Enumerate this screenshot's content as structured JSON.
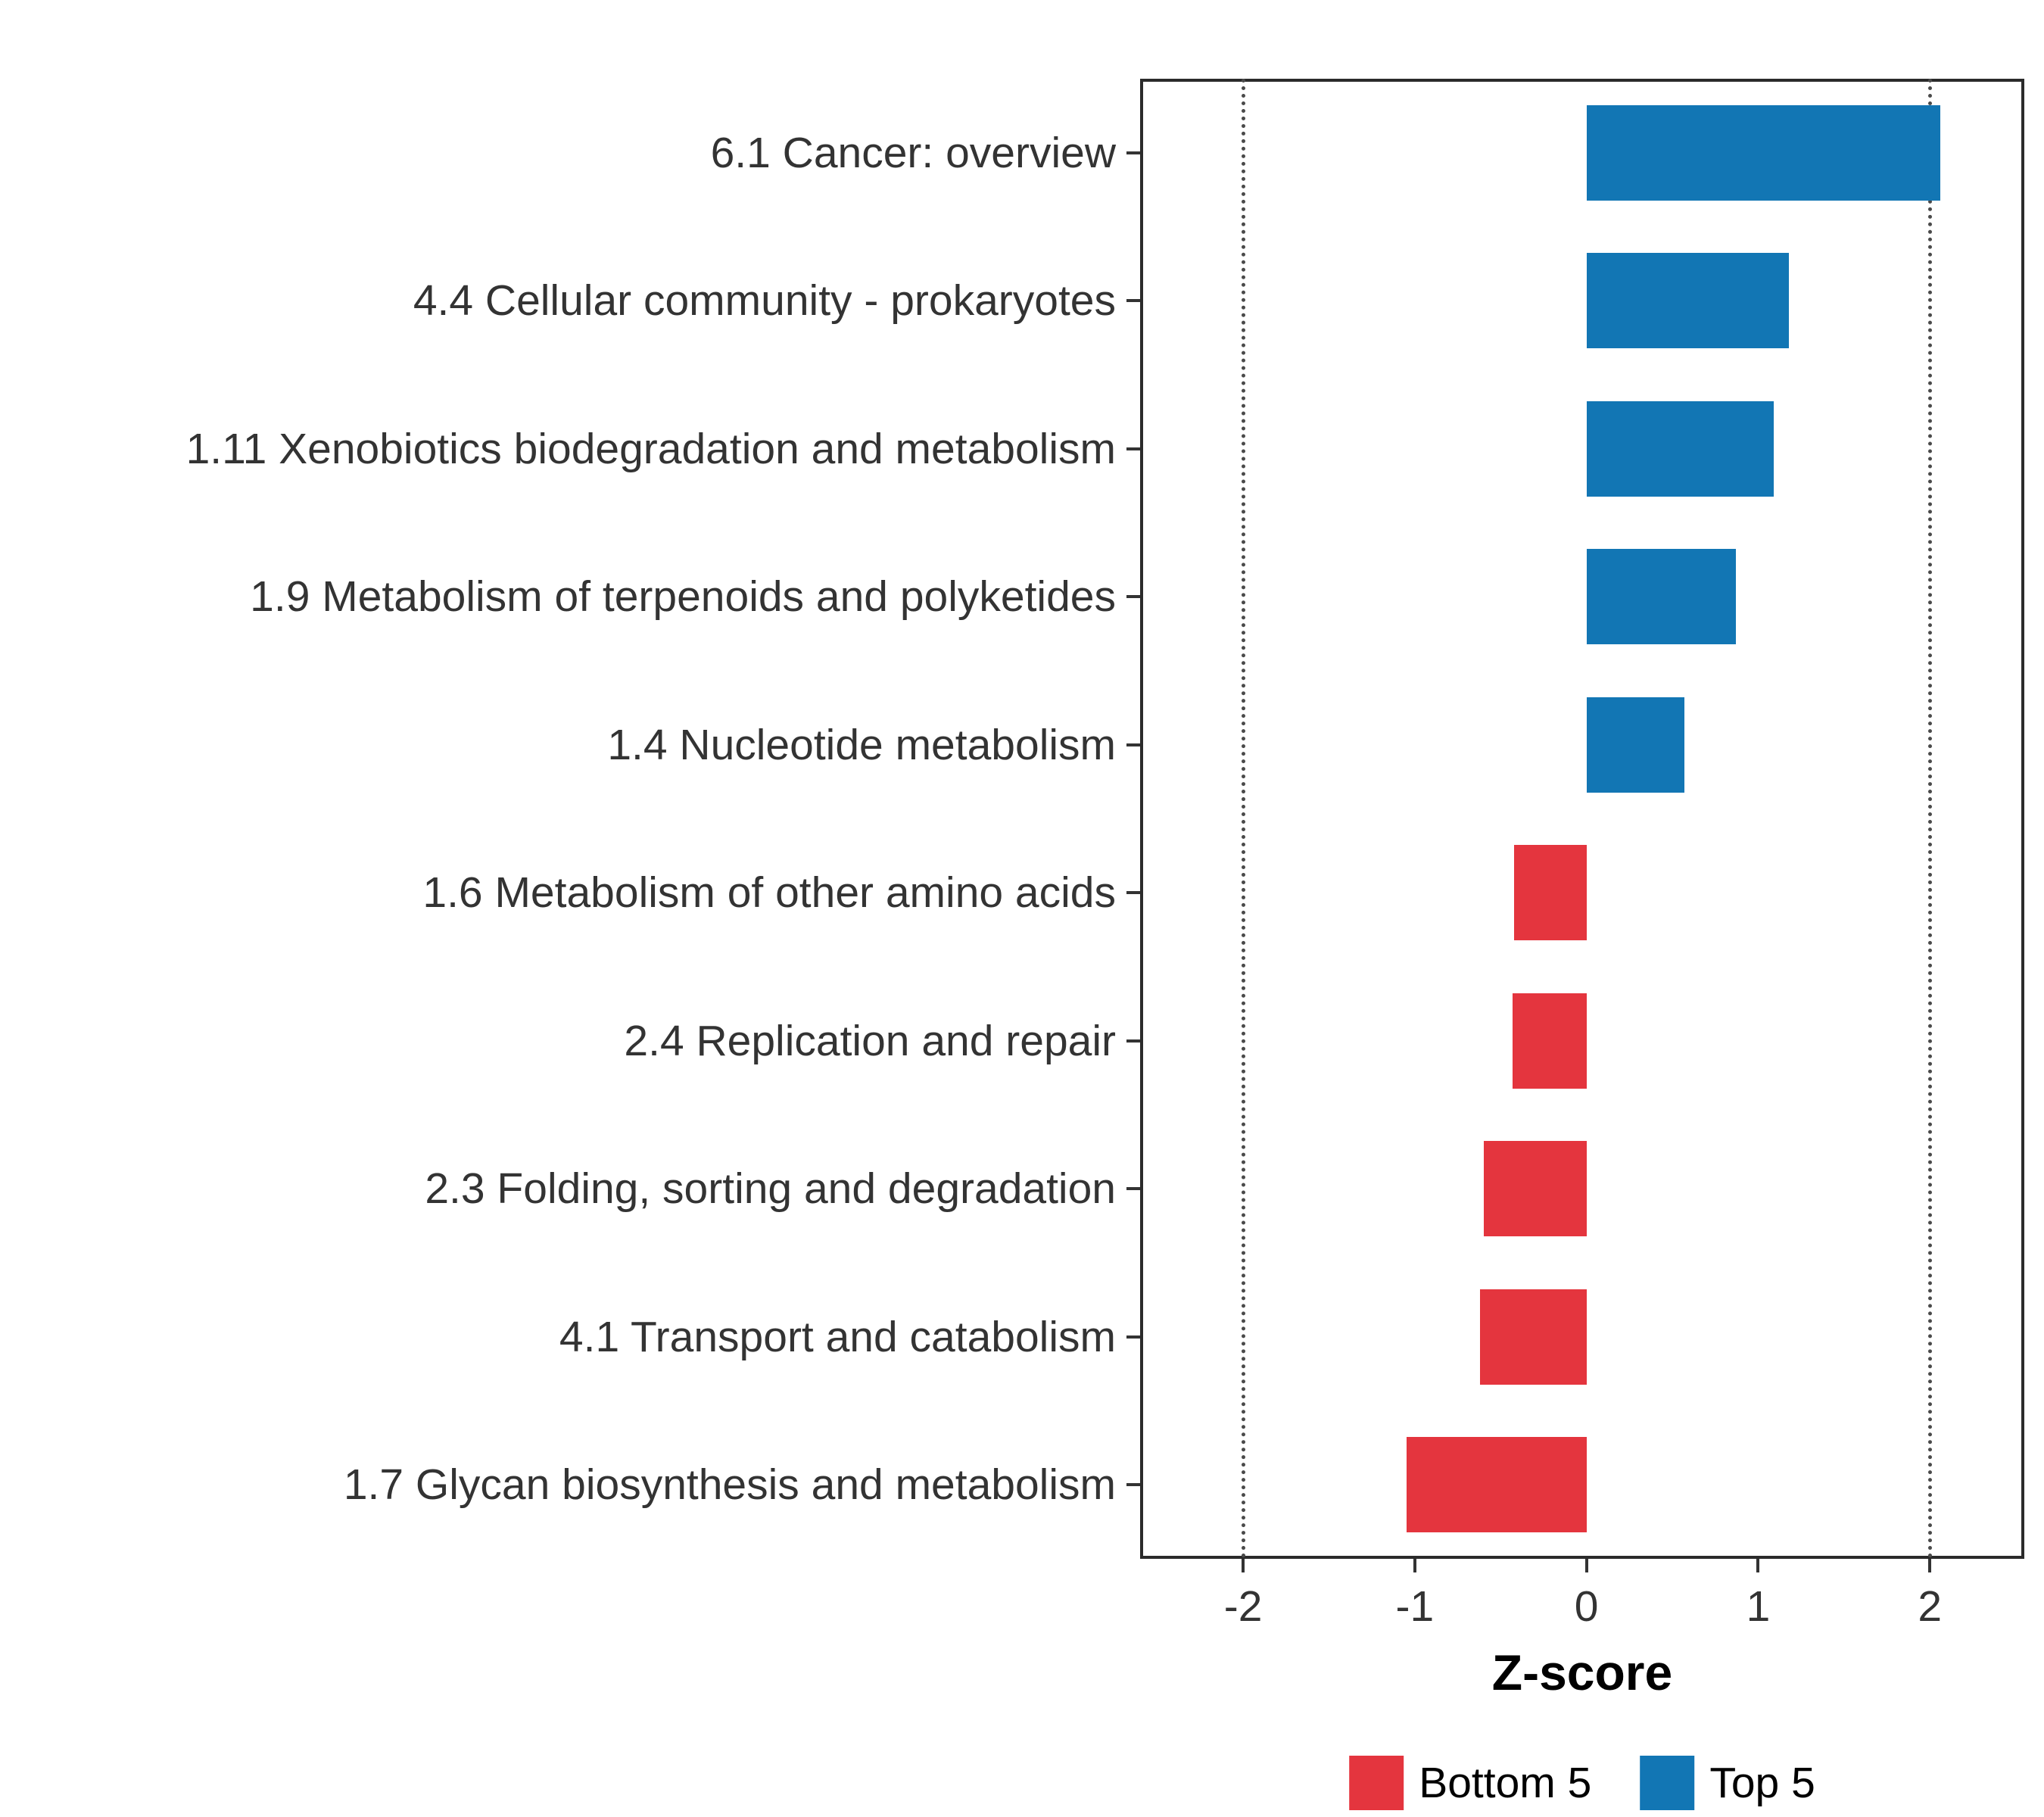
{
  "chart_data": {
    "type": "bar",
    "orientation": "horizontal",
    "title": "",
    "xlabel": "Z-score",
    "ylabel": "",
    "xlim": [
      -2.6,
      2.55
    ],
    "x_ticks": [
      "-2",
      "-1",
      "0",
      "1",
      "2"
    ],
    "x_tick_values": [
      -2,
      -1,
      0,
      1,
      2
    ],
    "reference_lines": [
      -2,
      2
    ],
    "grid": false,
    "legend_position": "bottom",
    "categories": [
      "6.1 Cancer: overview",
      "4.4 Cellular community - prokaryotes",
      "1.11 Xenobiotics biodegradation and metabolism",
      "1.9 Metabolism of terpenoids and polyketides",
      "1.4 Nucleotide metabolism",
      "1.6 Metabolism of other amino acids",
      "2.4 Replication and repair",
      "2.3 Folding, sorting and degradation",
      "4.1 Transport and catabolism",
      "1.7 Glycan biosynthesis and metabolism"
    ],
    "values": [
      2.06,
      1.18,
      1.09,
      0.87,
      0.57,
      -0.42,
      -0.43,
      -0.6,
      -0.62,
      -1.05
    ],
    "groups": [
      "Top 5",
      "Top 5",
      "Top 5",
      "Top 5",
      "Top 5",
      "Bottom 5",
      "Bottom 5",
      "Bottom 5",
      "Bottom 5",
      "Bottom 5"
    ],
    "group_colors": {
      "Top 5": "#1276b4",
      "Bottom 5": "#e4353e"
    },
    "legend": {
      "entries": [
        {
          "label": "Bottom 5",
          "color": "#e4353e"
        },
        {
          "label": "Top 5",
          "color": "#1276b4"
        }
      ]
    }
  }
}
